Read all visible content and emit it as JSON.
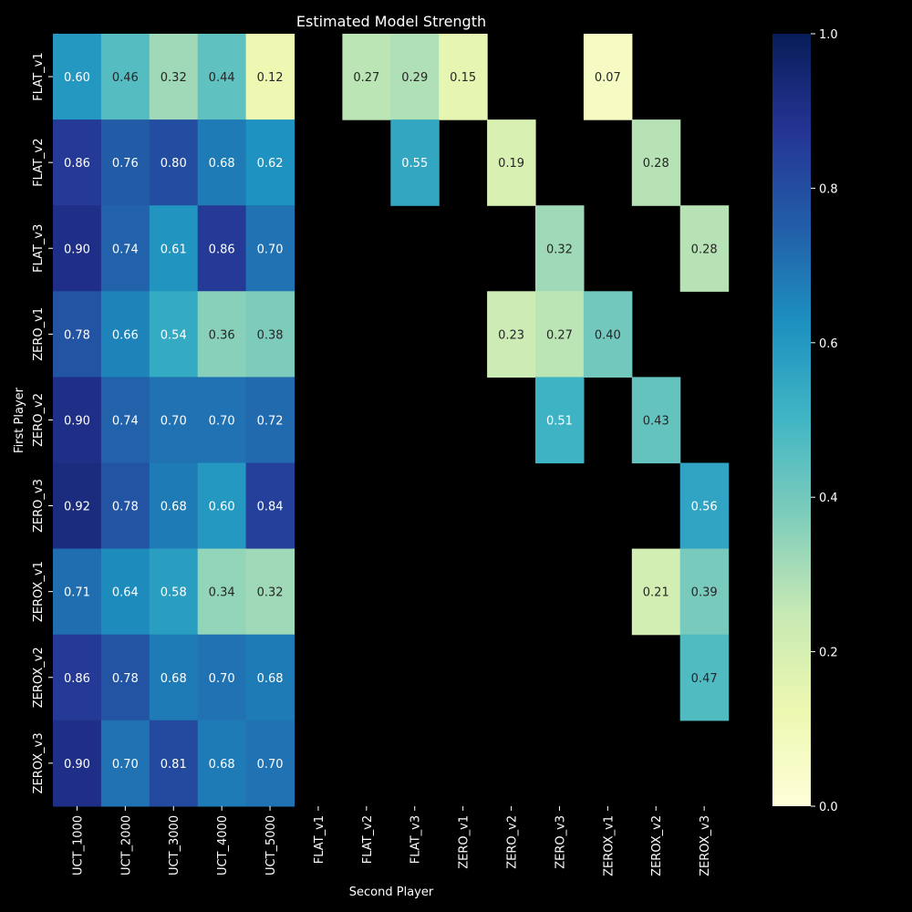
{
  "chart_data": {
    "type": "heatmap",
    "title": "Estimated Model Strength",
    "xlabel": "Second Player",
    "ylabel": "First Player",
    "x_categories": [
      "UCT_1000",
      "UCT_2000",
      "UCT_3000",
      "UCT_4000",
      "UCT_5000",
      "FLAT_v1",
      "FLAT_v2",
      "FLAT_v3",
      "ZERO_v1",
      "ZERO_v2",
      "ZERO_v3",
      "ZEROX_v1",
      "ZEROX_v2",
      "ZEROX_v3"
    ],
    "y_categories": [
      "FLAT_v1",
      "FLAT_v2",
      "FLAT_v3",
      "ZERO_v1",
      "ZERO_v2",
      "ZERO_v3",
      "ZEROX_v1",
      "ZEROX_v2",
      "ZEROX_v3"
    ],
    "values": [
      [
        0.6,
        0.46,
        0.32,
        0.44,
        0.12,
        null,
        0.27,
        0.29,
        0.15,
        null,
        null,
        0.07,
        null,
        null
      ],
      [
        0.86,
        0.76,
        0.8,
        0.68,
        0.62,
        null,
        null,
        0.55,
        null,
        0.19,
        null,
        null,
        0.28,
        null
      ],
      [
        0.9,
        0.74,
        0.61,
        0.86,
        0.7,
        null,
        null,
        null,
        null,
        null,
        0.32,
        null,
        null,
        0.28
      ],
      [
        0.78,
        0.66,
        0.54,
        0.36,
        0.38,
        null,
        null,
        null,
        null,
        0.23,
        0.27,
        0.4,
        null,
        null
      ],
      [
        0.9,
        0.74,
        0.7,
        0.7,
        0.72,
        null,
        null,
        null,
        null,
        null,
        0.51,
        null,
        0.43,
        null
      ],
      [
        0.92,
        0.78,
        0.68,
        0.6,
        0.84,
        null,
        null,
        null,
        null,
        null,
        null,
        null,
        null,
        0.56
      ],
      [
        0.71,
        0.64,
        0.58,
        0.34,
        0.32,
        null,
        null,
        null,
        null,
        null,
        null,
        null,
        0.21,
        0.39
      ],
      [
        0.86,
        0.78,
        0.68,
        0.7,
        0.68,
        null,
        null,
        null,
        null,
        null,
        null,
        null,
        null,
        0.47
      ],
      [
        0.9,
        0.7,
        0.81,
        0.68,
        0.7,
        null,
        null,
        null,
        null,
        null,
        null,
        null,
        null,
        null
      ]
    ],
    "colorscale": "YlGnBu",
    "vmin": 0.0,
    "vmax": 1.0,
    "colorbar_ticks": [
      "0.0",
      "0.2",
      "0.4",
      "0.6",
      "0.8",
      "1.0"
    ],
    "annotations": true,
    "background_color": "#000000"
  }
}
